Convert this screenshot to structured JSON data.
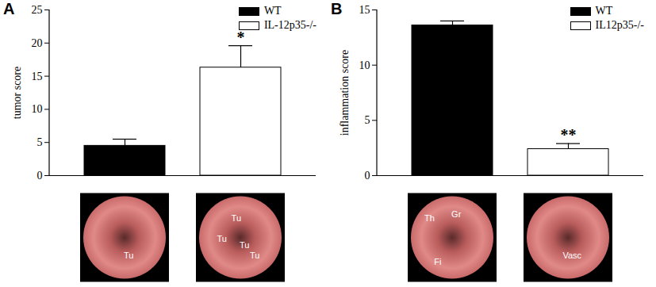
{
  "chart_data": [
    {
      "type": "bar",
      "panel": "A",
      "y_label": "tumor score",
      "categories": [
        null,
        null
      ],
      "series": [
        {
          "name": "WT",
          "color": "#000000",
          "values": [
            4.5,
            null
          ],
          "errors": [
            1.0,
            null
          ]
        },
        {
          "name": "IL-12p35-/-",
          "color": "#ffffff",
          "values": [
            null,
            16.3
          ],
          "errors": [
            null,
            3.3
          ]
        }
      ],
      "ylim": [
        0,
        25
      ],
      "yticks": [
        0,
        5,
        10,
        15,
        20,
        25
      ],
      "legend": "top-right",
      "tick_labels": "y",
      "annotations": [
        {
          "text": "*",
          "series": "IL-12p35-/-"
        }
      ],
      "photos": [
        {
          "labels": [
            "Tu"
          ]
        },
        {
          "labels": [
            "Tu",
            "Tu",
            "Tu",
            "Tu"
          ]
        }
      ]
    },
    {
      "type": "bar",
      "panel": "B",
      "y_label": "inflammation score",
      "categories": [
        null,
        null
      ],
      "series": [
        {
          "name": "WT",
          "color": "#000000",
          "values": [
            13.6,
            null
          ],
          "errors": [
            0.4,
            null
          ]
        },
        {
          "name": "IL12p35-/-",
          "color": "#ffffff",
          "values": [
            null,
            2.4
          ],
          "errors": [
            null,
            0.5
          ]
        }
      ],
      "ylim": [
        0,
        15
      ],
      "yticks": [
        0,
        5,
        10,
        15
      ],
      "legend": "top-right",
      "tick_labels": "y",
      "annotations": [
        {
          "text": "**",
          "series": "IL12p35-/-"
        }
      ],
      "photos": [
        {
          "labels": [
            "Th",
            "Gr",
            "Fi"
          ]
        },
        {
          "labels": [
            "Vasc"
          ]
        }
      ]
    }
  ]
}
